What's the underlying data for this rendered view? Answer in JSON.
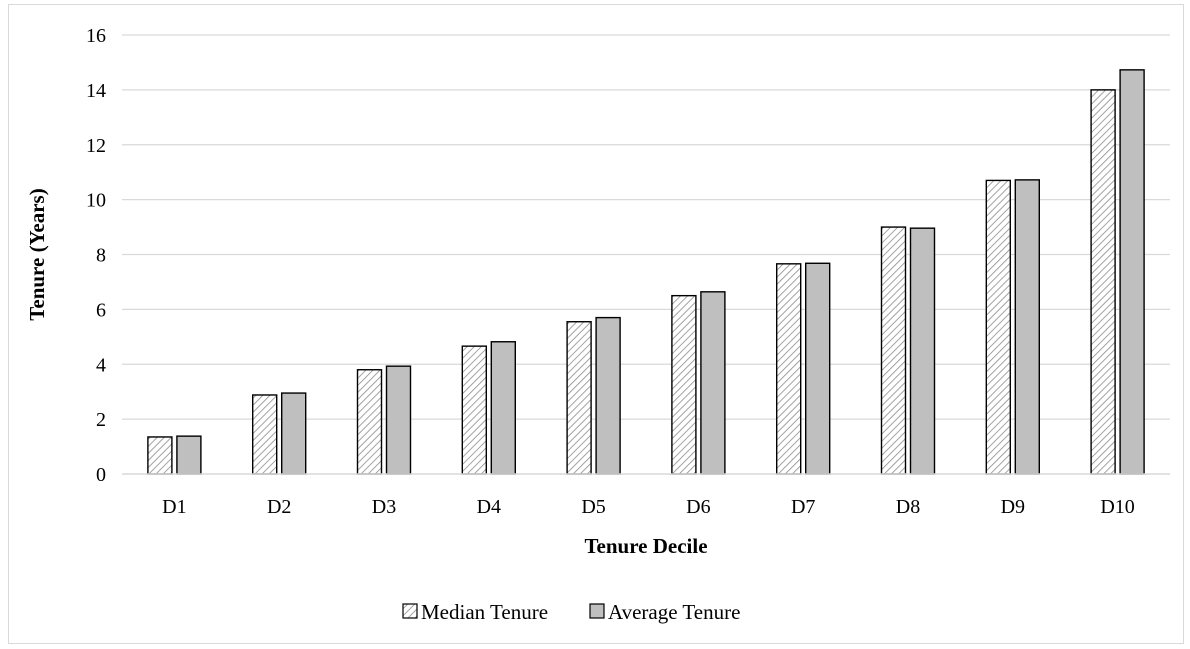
{
  "chart_data": {
    "type": "bar",
    "title": "",
    "xlabel": "Tenure Decile",
    "ylabel": "Tenure (Years)",
    "ylim": [
      0,
      16
    ],
    "yticks": [
      0,
      2,
      4,
      6,
      8,
      10,
      12,
      14,
      16
    ],
    "grid": true,
    "legend": "bottom",
    "categories": [
      "D1",
      "D2",
      "D3",
      "D4",
      "D5",
      "D6",
      "D7",
      "D8",
      "D9",
      "D10"
    ],
    "series": [
      {
        "name": "Median Tenure",
        "pattern": "diagonal-hatch",
        "color": "#bfbfbf",
        "values": [
          1.35,
          2.88,
          3.8,
          4.66,
          5.55,
          6.5,
          7.66,
          9.0,
          10.7,
          14.0
        ]
      },
      {
        "name": "Average Tenure",
        "pattern": "solid",
        "color": "#bfbfbf",
        "values": [
          1.38,
          2.95,
          3.93,
          4.82,
          5.7,
          6.64,
          7.68,
          8.96,
          10.72,
          14.73
        ]
      }
    ]
  }
}
